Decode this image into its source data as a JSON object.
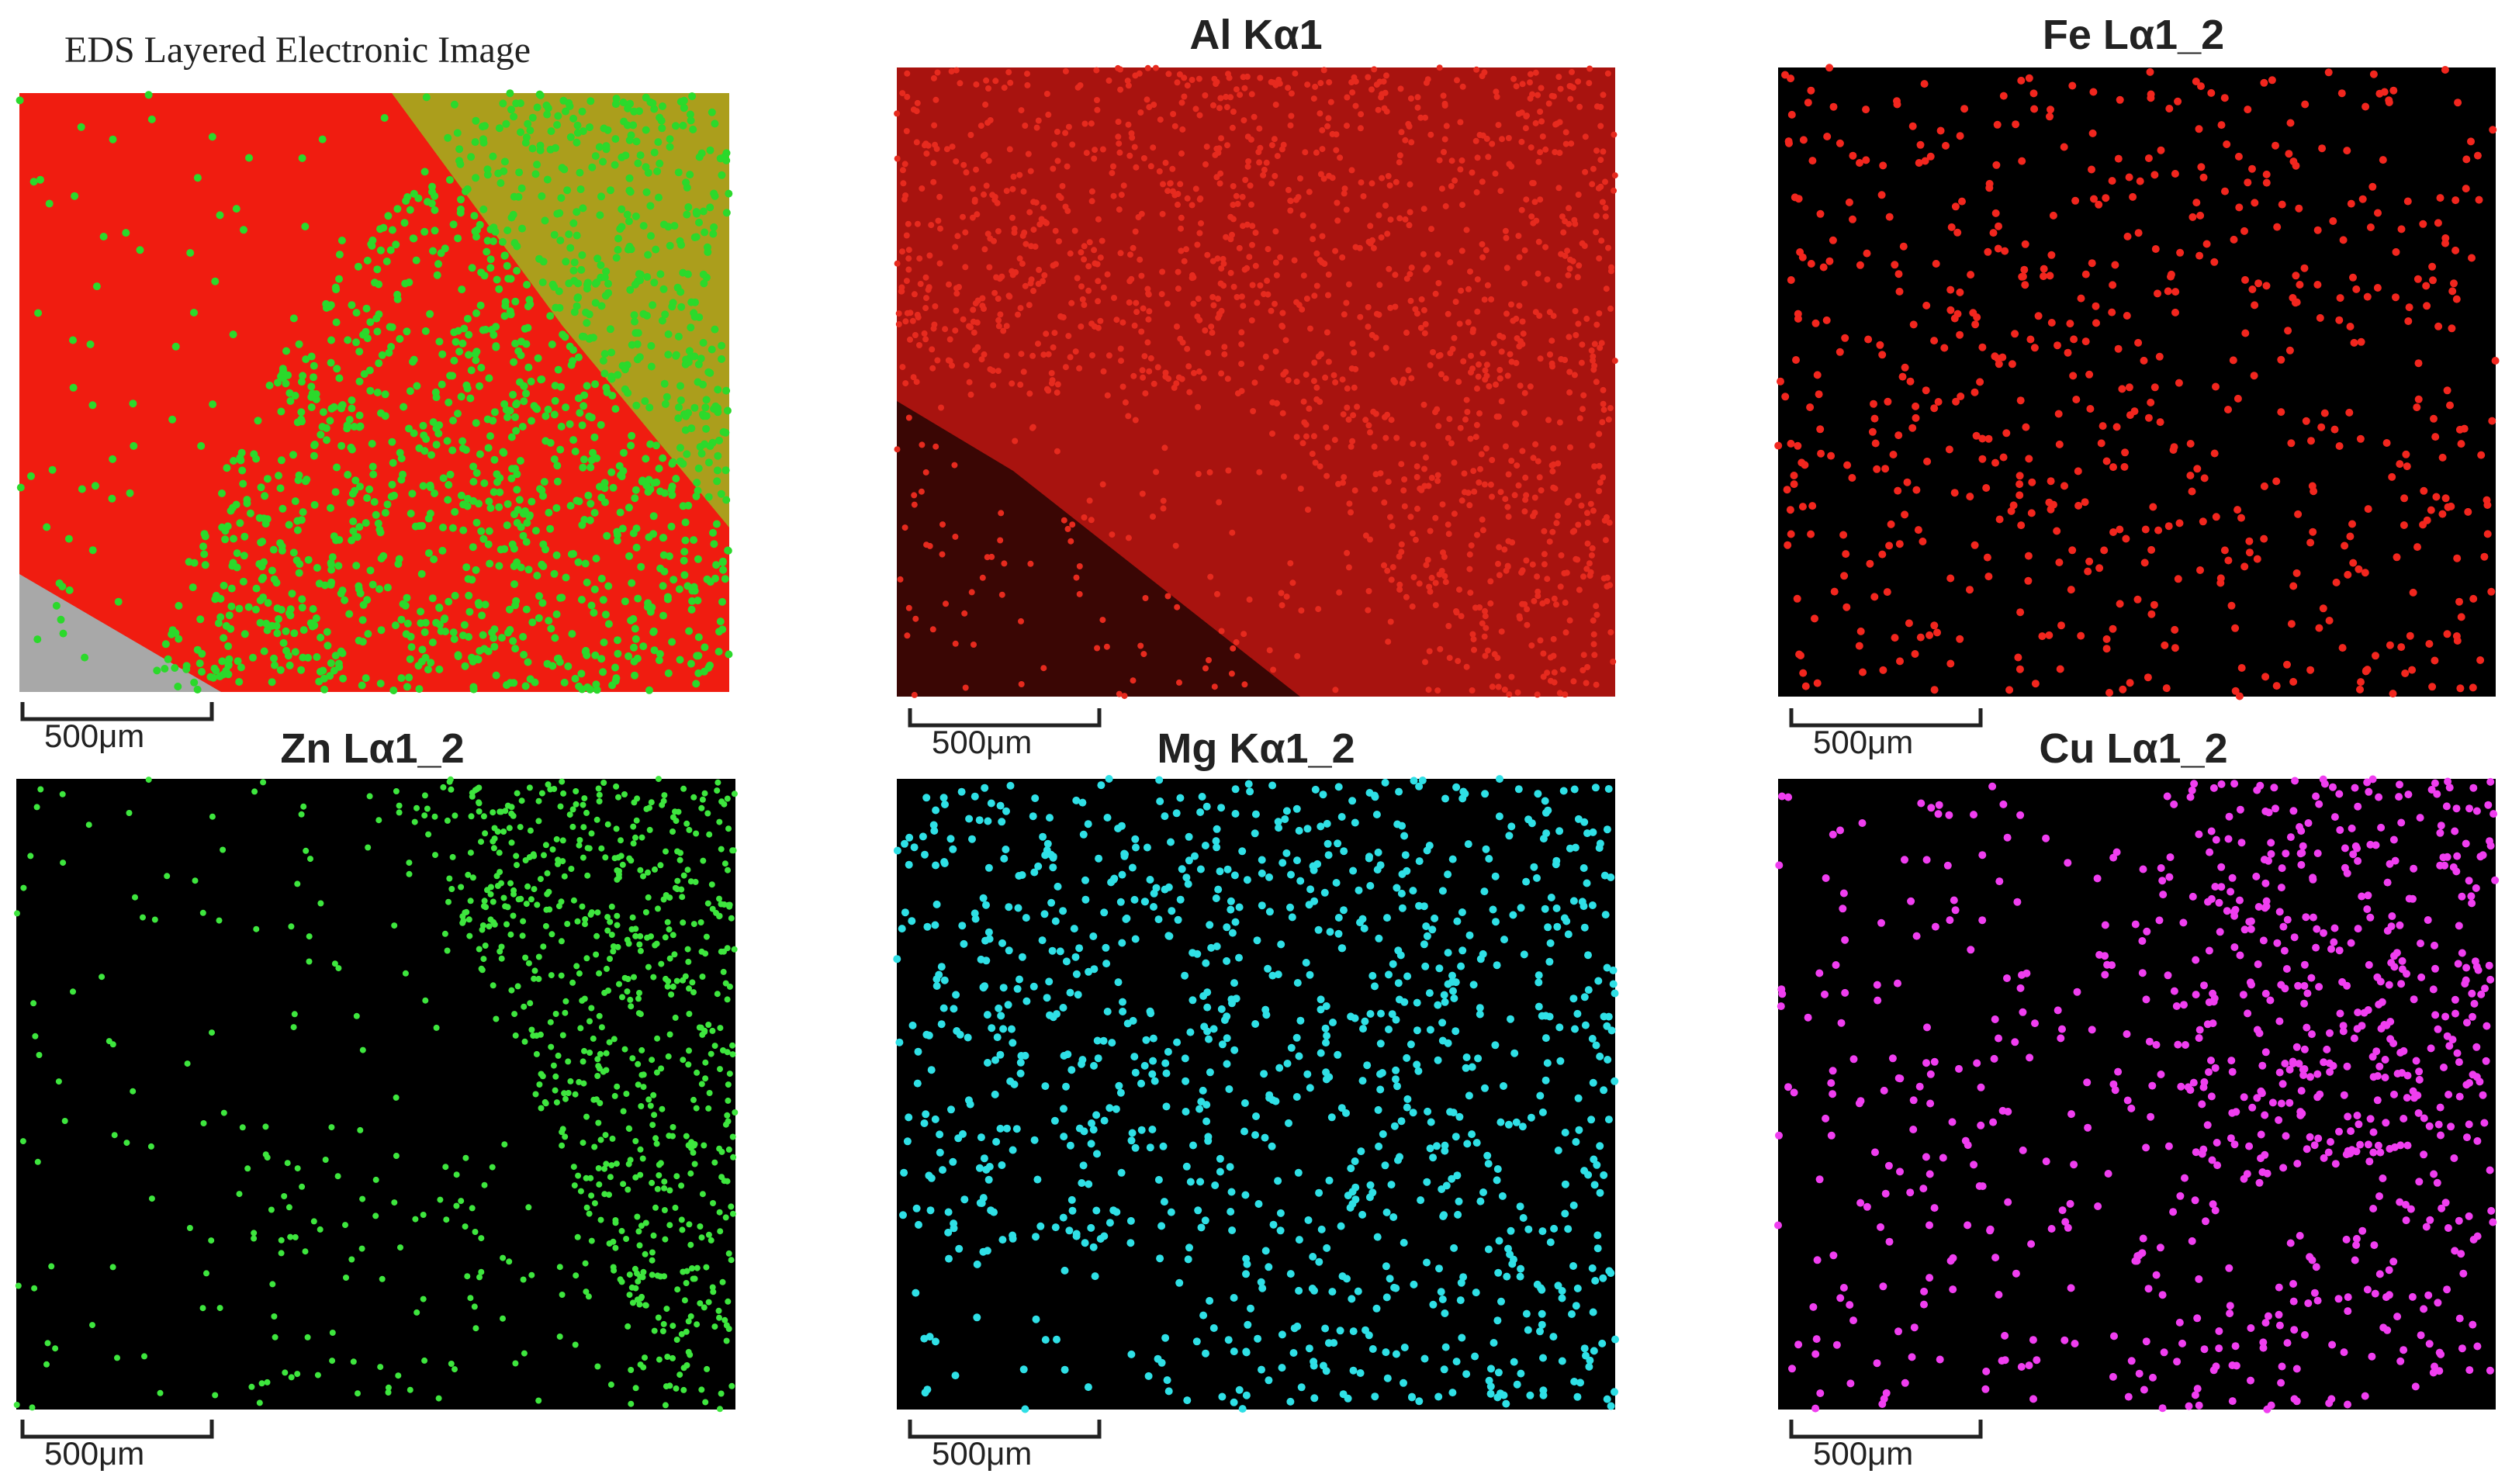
{
  "panels": [
    {
      "title": "EDS Layered Electronic Image",
      "scale_label": "500μm"
    },
    {
      "title": "Al Kα1",
      "scale_label": "500μm"
    },
    {
      "title": "Fe Lα1_2",
      "scale_label": "500μm"
    },
    {
      "title": "Zn Lα1_2",
      "scale_label": "500μm"
    },
    {
      "title": "Mg Kα1_2",
      "scale_label": "500μm"
    },
    {
      "title": "Cu Lα1_2",
      "scale_label": "500μm"
    }
  ]
}
